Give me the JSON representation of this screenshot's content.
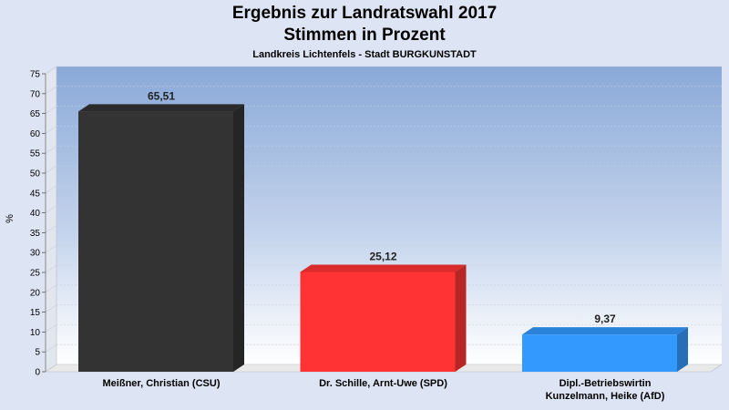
{
  "chart_data": {
    "type": "bar",
    "title": "Ergebnis zur Landratswahl 2017",
    "subtitle_line2": "Stimmen in Prozent",
    "subtitle": "Landkreis Lichtenfels - Stadt BURGKUNSTADT",
    "ylabel": "%",
    "xlabel": "",
    "ylim": [
      0,
      75
    ],
    "yticks": [
      0,
      5,
      10,
      15,
      20,
      25,
      30,
      35,
      40,
      45,
      50,
      55,
      60,
      65,
      70,
      75
    ],
    "grid": true,
    "categories": [
      [
        "Meißner, Christian (CSU)"
      ],
      [
        "Dr. Schille, Arnt-Uwe (SPD)"
      ],
      [
        "Dipl.-Betriebswirtin",
        "Kunzelmann, Heike (AfD)"
      ]
    ],
    "values": [
      65.51,
      25.12,
      9.37
    ],
    "value_labels": [
      "65,51",
      "25,12",
      "9,37"
    ],
    "colors": [
      "#333333",
      "#ff3333",
      "#3399ff"
    ]
  }
}
